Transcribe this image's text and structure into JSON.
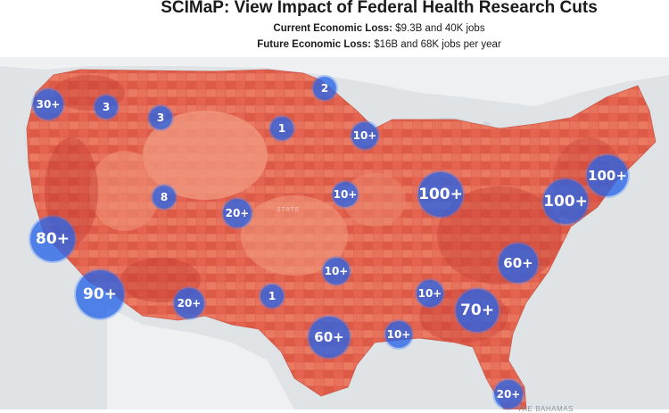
{
  "header": {
    "title": "SCIMaP: View Impact of Federal Health Research Cuts",
    "current_label": "Current Economic Loss:",
    "current_value": "$9.3B and 40K jobs",
    "future_label": "Future Economic Loss:",
    "future_value": "$16B and 68K jobs per year"
  },
  "map": {
    "colors": {
      "land": "#e5644f",
      "land_light": "#f09a80",
      "land_dark": "#c63c33",
      "water": "#dfe3e6",
      "bubble": "#2664e8"
    },
    "place_labels": {
      "bahamas": "THE BAHAMAS",
      "state": "STATE"
    },
    "clusters": [
      {
        "id": "seattle",
        "label": "30+"
      },
      {
        "id": "spokane",
        "label": "3"
      },
      {
        "id": "montana",
        "label": "3"
      },
      {
        "id": "minnesota-north",
        "label": "2"
      },
      {
        "id": "south-dakota",
        "label": "1"
      },
      {
        "id": "wisconsin",
        "label": "10+"
      },
      {
        "id": "utah",
        "label": "8"
      },
      {
        "id": "colorado",
        "label": "20+"
      },
      {
        "id": "iowa",
        "label": "10+"
      },
      {
        "id": "midwest",
        "label": "100+"
      },
      {
        "id": "northeast",
        "label": "100+"
      },
      {
        "id": "mid-atlantic",
        "label": "100+"
      },
      {
        "id": "northern-california",
        "label": "80+"
      },
      {
        "id": "carolinas",
        "label": "60+"
      },
      {
        "id": "oklahoma",
        "label": "10+"
      },
      {
        "id": "southern-california",
        "label": "90+"
      },
      {
        "id": "arizona",
        "label": "20+"
      },
      {
        "id": "new-mexico",
        "label": "1"
      },
      {
        "id": "tennessee",
        "label": "10+"
      },
      {
        "id": "georgia",
        "label": "70+"
      },
      {
        "id": "texas",
        "label": "60+"
      },
      {
        "id": "louisiana",
        "label": "10+"
      },
      {
        "id": "florida",
        "label": "20+"
      }
    ]
  }
}
